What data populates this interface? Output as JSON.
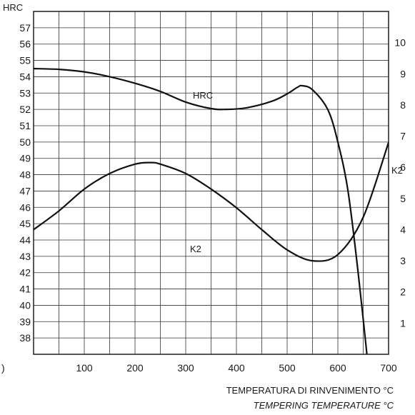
{
  "chart_data": {
    "type": "line",
    "title": "",
    "xlabel": "TEMPERATURA DI RINVENIMENTO °C",
    "xlabel_secondary": "TEMPERING TEMPERATURE °C",
    "x_origin_label": ")",
    "xlim": [
      0,
      700
    ],
    "x_ticks": [
      100,
      200,
      300,
      400,
      500,
      600,
      700
    ],
    "ylabel_left": "HRC",
    "ylim_left": [
      37,
      58
    ],
    "y_ticks_left": [
      38,
      39,
      40,
      41,
      42,
      43,
      44,
      45,
      46,
      47,
      48,
      49,
      50,
      51,
      52,
      53,
      54,
      55,
      56,
      57
    ],
    "ylabel_right": "K2",
    "ylim_right": [
      0,
      11
    ],
    "y_ticks_right": [
      1,
      2,
      3,
      4,
      5,
      6,
      7,
      8,
      9,
      10
    ],
    "grid": true,
    "series": [
      {
        "name": "HRC",
        "axis": "left",
        "x": [
          0,
          50,
          100,
          150,
          200,
          250,
          300,
          350,
          380,
          420,
          470,
          500,
          520,
          530,
          550,
          580,
          600,
          620,
          640,
          660
        ],
        "values": [
          54.5,
          54.45,
          54.3,
          54.0,
          53.6,
          53.1,
          52.45,
          52.05,
          52.0,
          52.1,
          52.5,
          52.95,
          53.35,
          53.45,
          53.2,
          52.0,
          50.0,
          47.0,
          42.0,
          36.2
        ]
      },
      {
        "name": "K2",
        "axis": "right",
        "x": [
          0,
          50,
          100,
          150,
          200,
          230,
          250,
          300,
          350,
          400,
          450,
          500,
          550,
          600,
          650,
          700
        ],
        "values": [
          4,
          4.6,
          5.3,
          5.8,
          6.1,
          6.15,
          6.1,
          5.8,
          5.3,
          4.7,
          4.0,
          3.35,
          3.0,
          3.2,
          4.4,
          6.8
        ]
      }
    ]
  }
}
